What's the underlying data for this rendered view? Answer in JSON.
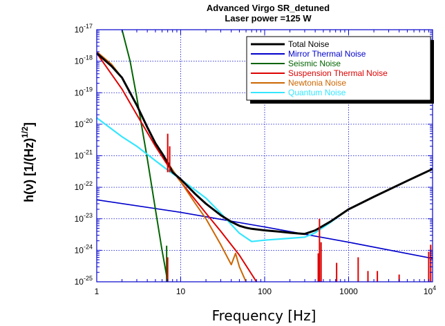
{
  "chart_data": {
    "type": "line",
    "title_line1": "Advanced Virgo SR_detuned",
    "title_line2": "Laser power =125 W",
    "xlabel": "Frequency  [Hz]",
    "ylabel_main": "h(ν)  [1/(Hz)",
    "ylabel_sup": "1/2",
    "ylabel_close": "]",
    "x_scale": "log",
    "y_scale": "log",
    "xlim": [
      1,
      10000
    ],
    "ylim": [
      1e-25,
      1e-17
    ],
    "grid": true,
    "legend_position": "top-right",
    "x_ticks": [
      {
        "value": 1,
        "label": "1"
      },
      {
        "value": 10,
        "label": "10"
      },
      {
        "value": 100,
        "label": "100"
      },
      {
        "value": 1000,
        "label": "1000"
      }
    ],
    "x_last_tick": {
      "value": 10000,
      "base": "10",
      "exp": "4"
    },
    "y_ticks": [
      {
        "value": 1e-17,
        "base": "10",
        "exp": "-17"
      },
      {
        "value": 1e-18,
        "base": "10",
        "exp": "-18"
      },
      {
        "value": 1e-19,
        "base": "10",
        "exp": "-19"
      },
      {
        "value": 1e-20,
        "base": "10",
        "exp": "-20"
      },
      {
        "value": 1e-21,
        "base": "10",
        "exp": "-21"
      },
      {
        "value": 1e-22,
        "base": "10",
        "exp": "-22"
      },
      {
        "value": 1e-23,
        "base": "10",
        "exp": "-23"
      },
      {
        "value": 1e-24,
        "base": "10",
        "exp": "-24"
      },
      {
        "value": 1e-25,
        "base": "10",
        "exp": "-25"
      }
    ],
    "series": [
      {
        "name": "Total Noise",
        "color": "#000000",
        "width": 3,
        "x": [
          1,
          1.5,
          2,
          3,
          4,
          5,
          6,
          7,
          8,
          10,
          15,
          20,
          30,
          40,
          50,
          60,
          70,
          100,
          150,
          200,
          300,
          400,
          600,
          1000,
          2000,
          5000,
          10000
        ],
        "y": [
          1.8e-18,
          7e-19,
          3e-19,
          4e-20,
          8e-21,
          2.5e-21,
          1.2e-21,
          6e-22,
          3e-22,
          1.8e-22,
          6e-23,
          3e-23,
          1.3e-23,
          8e-24,
          6e-24,
          5.2e-24,
          4.8e-24,
          4.3e-24,
          3.9e-24,
          3.6e-24,
          3.3e-24,
          4.3e-24,
          8e-24,
          2e-23,
          5e-23,
          1.6e-22,
          3.8e-22
        ]
      },
      {
        "name": "Mirror Thermal Noise",
        "color": "#0000cc",
        "width": 1.6,
        "x": [
          1,
          10,
          100,
          1000,
          10000
        ],
        "y": [
          4e-23,
          1.6e-23,
          5.5e-24,
          1.8e-24,
          5.5e-25
        ]
      },
      {
        "name": "Seismic Noise",
        "color": "#006400",
        "width": 2,
        "x": [
          2,
          2.5,
          3,
          4,
          5,
          6,
          7
        ],
        "y": [
          1.2e-17,
          1e-18,
          7e-20,
          8e-22,
          2e-23,
          1e-24,
          5e-26
        ]
      },
      {
        "name": "Suspension Thermal Noise",
        "color": "#dd0000",
        "width": 2,
        "x": [
          1,
          2,
          3,
          5,
          7,
          10,
          20,
          30,
          50,
          80
        ],
        "y": [
          1.8e-18,
          1.3e-19,
          2e-20,
          2e-21,
          5e-22,
          1.5e-22,
          1.5e-23,
          4e-24,
          7e-25,
          1e-25
        ]
      },
      {
        "name": "Newtonia Noise",
        "color": "#cc6600",
        "width": 2,
        "x": [
          1,
          1.5,
          2,
          3,
          4,
          5,
          7,
          10,
          15,
          20,
          30,
          40,
          45,
          50,
          60
        ],
        "y": [
          2e-18,
          8e-19,
          3e-19,
          4e-20,
          8e-21,
          2.5e-21,
          6e-22,
          1.5e-22,
          3e-23,
          1e-23,
          1.5e-24,
          3.5e-25,
          8e-25,
          3e-25,
          5e-26
        ]
      },
      {
        "name": "Quantum Noise",
        "color": "#33e6ff",
        "width": 2.2,
        "x": [
          1,
          2,
          3,
          5,
          7,
          10,
          20,
          30,
          50,
          70,
          100,
          200,
          300,
          400,
          600,
          1000,
          2000,
          5000,
          10000
        ],
        "y": [
          1.6e-20,
          4e-21,
          2e-21,
          7e-22,
          3.5e-22,
          1.8e-22,
          4.5e-23,
          1.5e-23,
          3.5e-24,
          1.9e-24,
          2.1e-24,
          2.4e-24,
          2.6e-24,
          3.6e-24,
          7.5e-24,
          2e-23,
          5e-23,
          1.6e-22,
          3.8e-22
        ]
      }
    ],
    "spikes": [
      {
        "x": 6.8,
        "y0": 1e-25,
        "y1": 1.4e-24,
        "color": "#006400"
      },
      {
        "x": 7,
        "y0": 1e-25,
        "y1": 6e-25,
        "color": "#dd0000"
      },
      {
        "x": 7,
        "y0": 3e-22,
        "y1": 5e-21,
        "color": "#dd0000"
      },
      {
        "x": 7.4,
        "y0": 3e-22,
        "y1": 2e-21,
        "color": "#dd0000"
      },
      {
        "x": 435,
        "y0": 1e-25,
        "y1": 8e-25,
        "color": "#dd0000"
      },
      {
        "x": 450,
        "y0": 1e-25,
        "y1": 1e-23,
        "color": "#dd0000"
      },
      {
        "x": 470,
        "y0": 1e-25,
        "y1": 1.8e-24,
        "color": "#dd0000"
      },
      {
        "x": 720,
        "y0": 1e-25,
        "y1": 4e-25,
        "color": "#dd0000"
      },
      {
        "x": 1300,
        "y0": 1e-25,
        "y1": 6e-25,
        "color": "#dd0000"
      },
      {
        "x": 1700,
        "y0": 1e-25,
        "y1": 2.2e-25,
        "color": "#dd0000"
      },
      {
        "x": 2200,
        "y0": 1e-25,
        "y1": 2.2e-25,
        "color": "#dd0000"
      },
      {
        "x": 4000,
        "y0": 1e-25,
        "y1": 1.7e-25,
        "color": "#dd0000"
      },
      {
        "x": 9000,
        "y0": 1e-25,
        "y1": 9e-25,
        "color": "#dd0000"
      },
      {
        "x": 9500,
        "y0": 1e-25,
        "y1": 1.5e-24,
        "color": "#dd0000"
      }
    ],
    "legend_text_colors": [
      "#000000",
      "#0000cc",
      "#006400",
      "#dd0000",
      "#cc6600",
      "#33e6ff"
    ],
    "grid_color": "#0000cc",
    "frame_color": "#0000cc"
  }
}
